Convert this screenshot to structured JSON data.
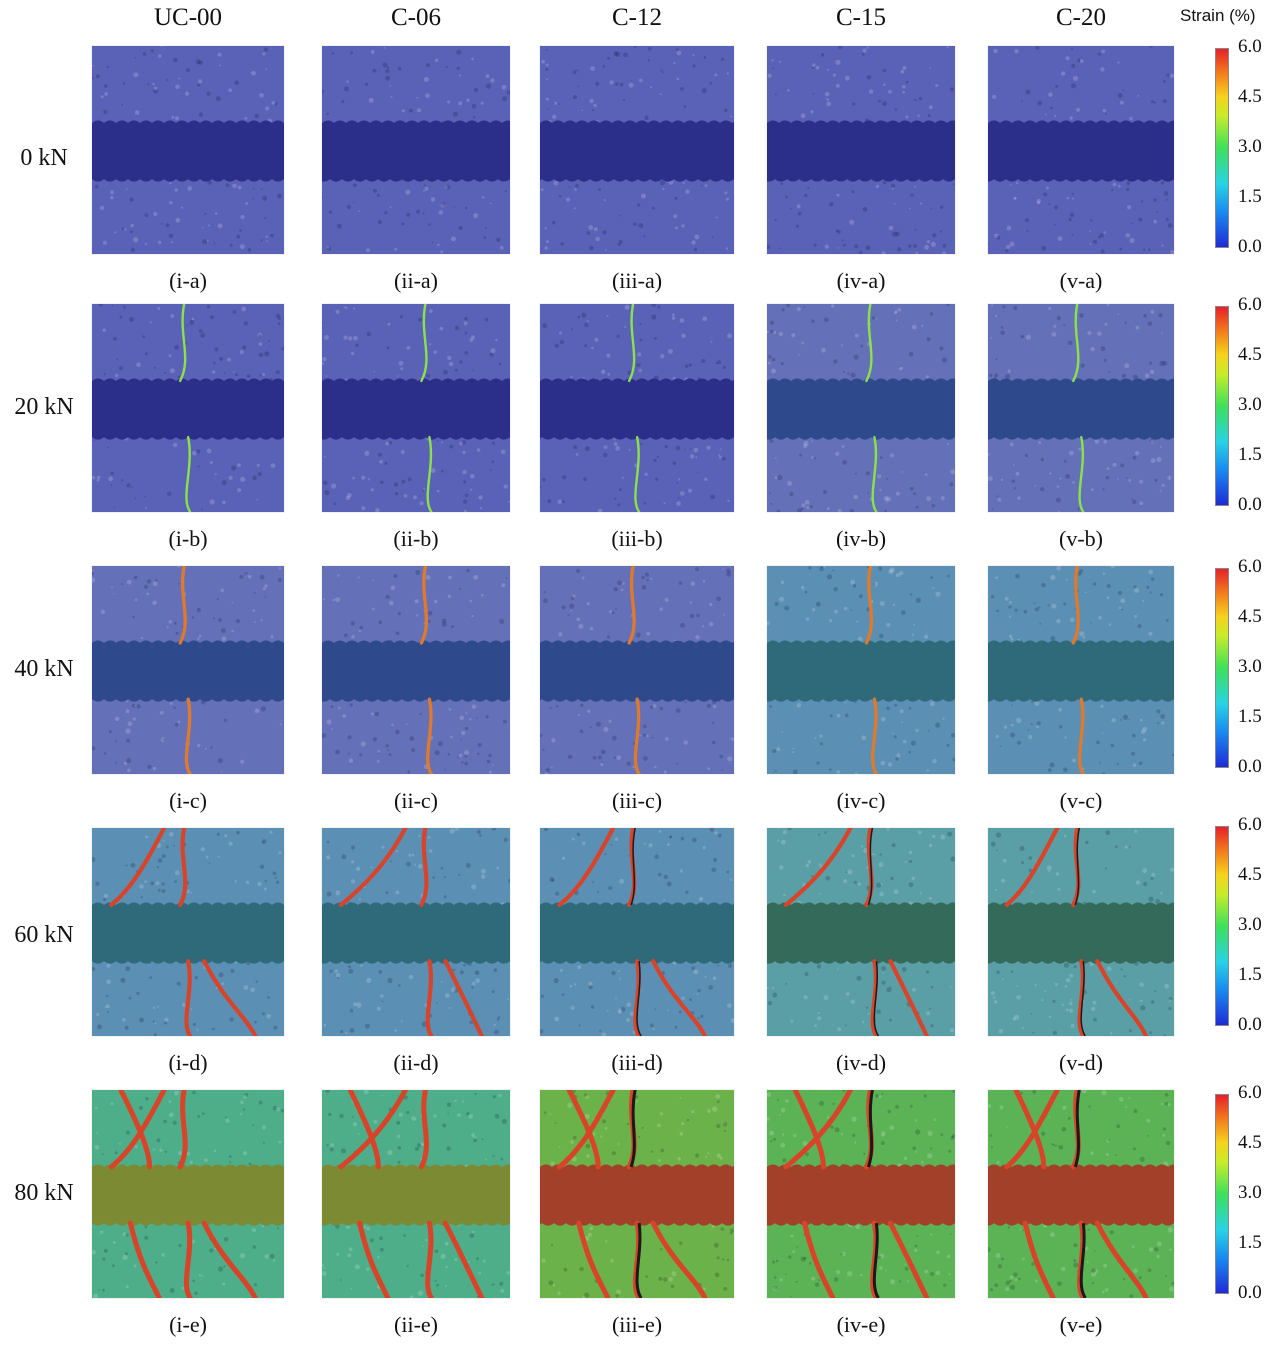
{
  "columns": [
    "UC-00",
    "C-06",
    "C-12",
    "C-15",
    "C-20"
  ],
  "rows": [
    "0 kN",
    "20 kN",
    "40 kN",
    "60 kN",
    "80 kN"
  ],
  "captions": [
    [
      "(i-a)",
      "(ii-a)",
      "(iii-a)",
      "(iv-a)",
      "(v-a)"
    ],
    [
      "(i-b)",
      "(ii-b)",
      "(iii-b)",
      "(iv-b)",
      "(v-b)"
    ],
    [
      "(i-c)",
      "(ii-c)",
      "(iii-c)",
      "(iv-c)",
      "(v-c)"
    ],
    [
      "(i-d)",
      "(ii-d)",
      "(iii-d)",
      "(iv-d)",
      "(v-d)"
    ],
    [
      "(i-e)",
      "(ii-e)",
      "(iii-e)",
      "(iv-e)",
      "(v-e)"
    ]
  ],
  "colorbar": {
    "title": "Strain (%)",
    "ticks": [
      "6.0",
      "4.5",
      "3.0",
      "1.5",
      "0.0"
    ],
    "colors": [
      "#1f2bd6",
      "#1a8bf0",
      "#28d3e4",
      "#3ee05a",
      "#c8ec2a",
      "#f6d21c",
      "#f37a1d",
      "#e5202a"
    ]
  },
  "panel_colors": {
    "blocks": [
      "#5a62b8",
      "#6470b8",
      "#5c8fb4",
      "#5a9ea6",
      "#3fa8a0"
    ],
    "mortar": [
      "#2c2f8a",
      "#2e4a8c",
      "#2f6a7a",
      "#346a5a",
      "#7a4a2a"
    ],
    "crack": "#e5552a"
  }
}
